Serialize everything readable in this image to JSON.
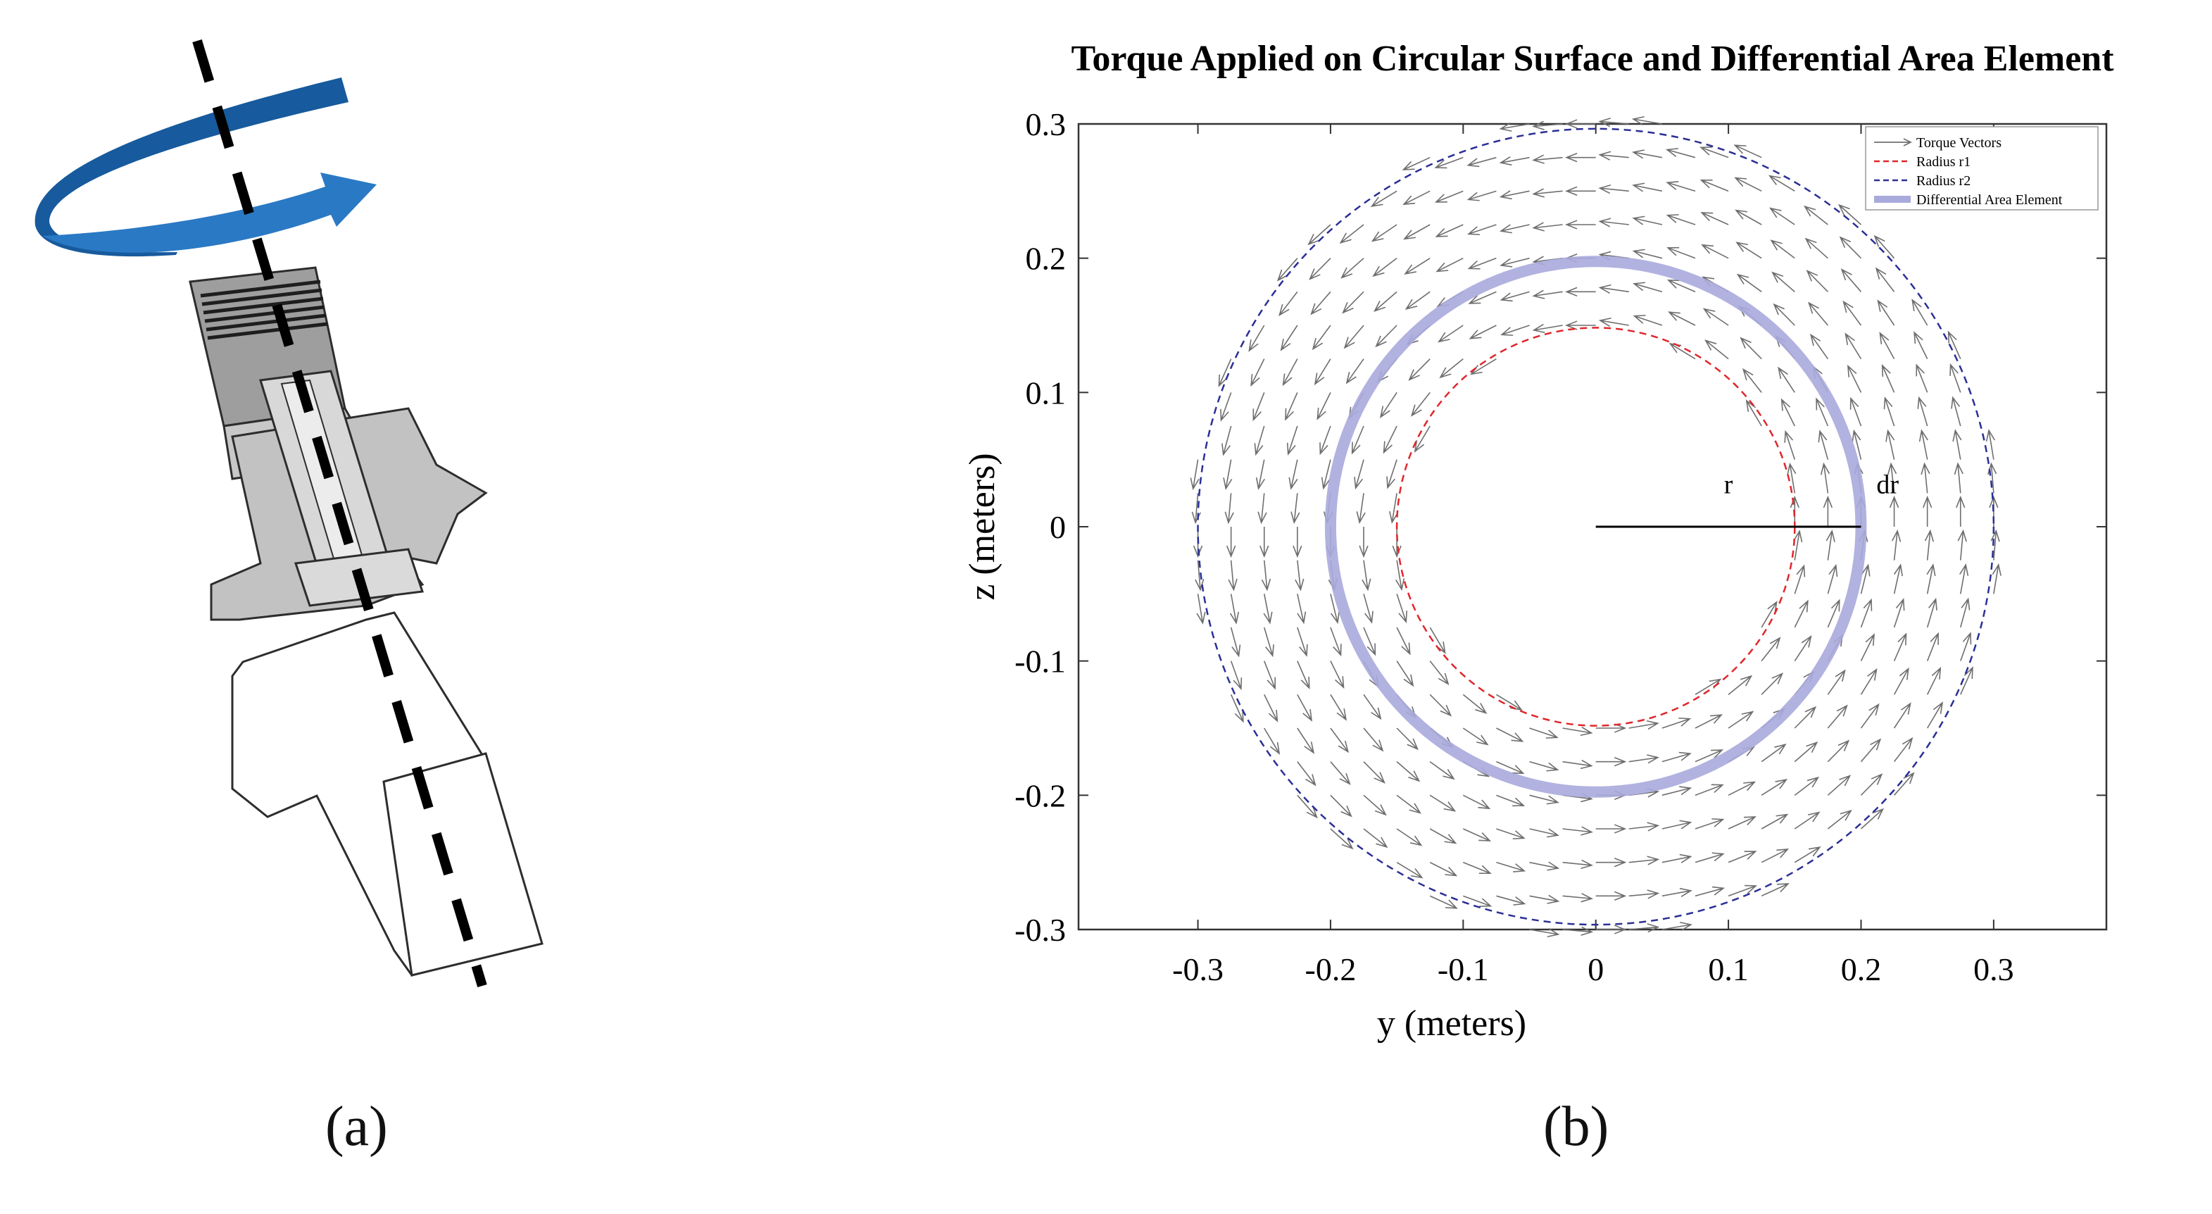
{
  "panel_a": {
    "caption": "(a)",
    "colors": {
      "arrow_dark": "#175a9d",
      "arrow_light": "#2a79c4",
      "axis": "#000000",
      "metal": "#bdbdbd"
    }
  },
  "panel_b": {
    "caption": "(b)",
    "chart_data": {
      "type": "quiver",
      "title": "Torque Applied on Circular Surface and Differential Area Element",
      "xlabel": "y (meters)",
      "ylabel": "z (meters)",
      "xlim": [
        -0.39,
        0.385
      ],
      "ylim": [
        -0.3,
        0.3
      ],
      "xticks": [
        -0.3,
        -0.2,
        -0.1,
        0,
        0.1,
        0.2,
        0.3
      ],
      "yticks": [
        -0.3,
        -0.2,
        -0.1,
        0,
        0.1,
        0.2,
        0.3
      ],
      "xtick_labels": [
        "-0.3",
        "-0.2",
        "-0.1",
        "0",
        "0.1",
        "0.2",
        "0.3"
      ],
      "ytick_labels": [
        "-0.3",
        "-0.2",
        "-0.1",
        "0",
        "0.1",
        "0.2",
        "0.3"
      ],
      "grid": false,
      "legend_position": "top-right",
      "legend": [
        {
          "label": "Torque Vectors",
          "style": "arrow",
          "color": "#707070"
        },
        {
          "label": "Radius r1",
          "style": "dashed",
          "color": "#e0262b"
        },
        {
          "label": "Radius r2",
          "style": "dashed",
          "color": "#2b2f96"
        },
        {
          "label": "Differential Area Element",
          "style": "thick",
          "color": "#a9aadc"
        }
      ],
      "r1": 0.15,
      "r2": 0.3,
      "r": 0.2,
      "torque_field": {
        "direction": "counterclockwise",
        "r_min": 0.15,
        "r_max": 0.3,
        "grid_step": 0.025,
        "vector_length": 0.022
      },
      "annotations": [
        {
          "text": "r",
          "x": 0.1,
          "y": 0.025
        },
        {
          "text": "dr",
          "x": 0.22,
          "y": 0.025
        }
      ],
      "radius_line": {
        "from": [
          0,
          0
        ],
        "to": [
          0.2,
          0
        ]
      }
    }
  }
}
